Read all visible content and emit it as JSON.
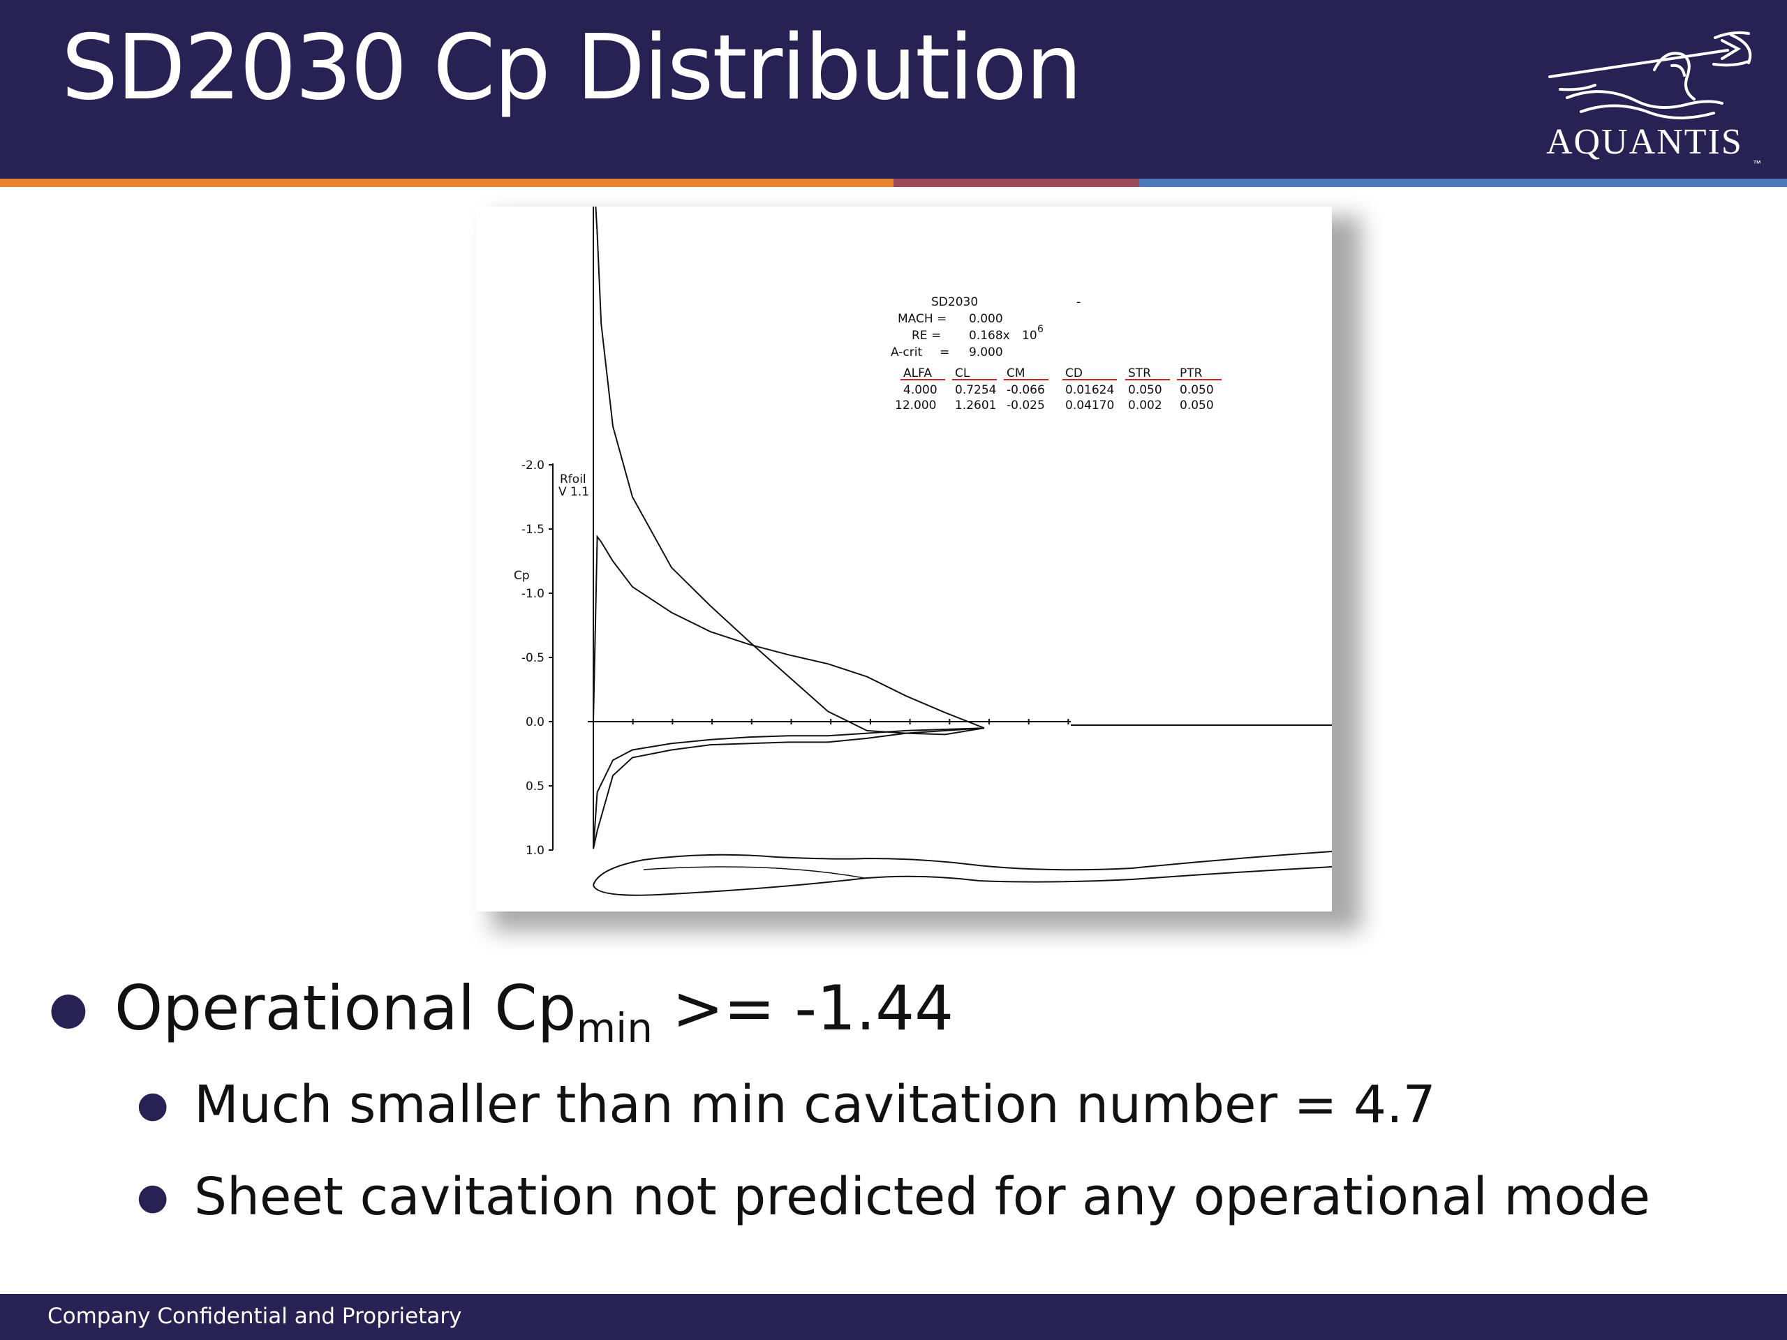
{
  "slide": {
    "title": "SD2030 Cp Distribution",
    "logo_text": "AQUANTIS",
    "logo_tm": "™",
    "footer": "Company Confidential and Proprietary"
  },
  "figure": {
    "airfoil": "SD2030",
    "dash": "-",
    "mach_label": "MACH =",
    "mach_value": "0.000",
    "re_label": "RE =",
    "re_value": "0.168x",
    "re_exp_base": "10",
    "re_exp": "6",
    "acrit_label": "A-crit",
    "acrit_eq": "=",
    "acrit_value": "9.000",
    "columns": [
      "ALFA",
      "CL",
      "CM",
      "CD",
      "STR",
      "PTR"
    ],
    "rows": [
      [
        "4.000",
        "0.7254",
        "-0.066",
        "0.01624",
        "0.050",
        "0.050"
      ],
      [
        "12.000",
        "1.2601",
        "-0.025",
        "0.04170",
        "0.002",
        "0.050"
      ]
    ],
    "program_name": "Rfoil",
    "program_version": "V   1.1",
    "axis_label": "Cp",
    "y_ticks": [
      "-2.0",
      "-1.5",
      "-1.0",
      "-0.5",
      "0.0",
      "0.5",
      "1.0"
    ]
  },
  "chart_data": {
    "type": "line",
    "title": "SD2030",
    "ylabel": "Cp",
    "ylim": [
      -2.0,
      1.0
    ],
    "y_inverted": true,
    "xlim": [
      0,
      1
    ],
    "series": [
      {
        "alpha": 12.0,
        "upper": {
          "x": [
            0.0,
            0.01,
            0.02,
            0.05,
            0.1,
            0.2,
            0.3,
            0.4,
            0.5,
            0.6,
            0.7,
            0.8,
            0.9,
            1.0
          ],
          "cp": [
            -5.5,
            -3.8,
            -3.1,
            -2.3,
            -1.75,
            -1.2,
            -0.9,
            -0.62,
            -0.35,
            -0.08,
            0.07,
            0.09,
            0.1,
            0.05
          ]
        },
        "lower": {
          "x": [
            0.0,
            0.01,
            0.05,
            0.1,
            0.2,
            0.3,
            0.4,
            0.5,
            0.6,
            0.7,
            0.8,
            0.9,
            1.0
          ],
          "cp": [
            0.99,
            0.85,
            0.42,
            0.28,
            0.22,
            0.18,
            0.17,
            0.16,
            0.16,
            0.13,
            0.09,
            0.07,
            0.05
          ]
        }
      },
      {
        "alpha": 4.0,
        "upper": {
          "x": [
            0.0,
            0.01,
            0.02,
            0.05,
            0.1,
            0.2,
            0.3,
            0.4,
            0.5,
            0.6,
            0.7,
            0.8,
            0.9,
            1.0
          ],
          "cp": [
            0.0,
            -1.44,
            -1.4,
            -1.25,
            -1.05,
            -0.85,
            -0.7,
            -0.6,
            -0.52,
            -0.45,
            -0.35,
            -0.2,
            -0.07,
            0.05
          ]
        },
        "lower": {
          "x": [
            0.0,
            0.01,
            0.05,
            0.1,
            0.2,
            0.3,
            0.4,
            0.5,
            0.6,
            0.7,
            0.8,
            0.9,
            1.0
          ],
          "cp": [
            0.99,
            0.55,
            0.3,
            0.22,
            0.17,
            0.14,
            0.12,
            0.11,
            0.11,
            0.09,
            0.07,
            0.06,
            0.05
          ]
        }
      }
    ]
  },
  "bullets": {
    "b1_pre": "Operational Cp",
    "b1_sub": "min",
    "b1_post": " >= -1.44",
    "b2": "Much smaller than min cavitation number = 4.7",
    "b3": "Sheet cavitation not predicted for any operational mode"
  },
  "colors": {
    "header_bg": "#272253",
    "stripe_orange": "#e88630",
    "stripe_red": "#9b4a59",
    "stripe_blue": "#4c78b8",
    "table_header_underline": "#d02020"
  }
}
